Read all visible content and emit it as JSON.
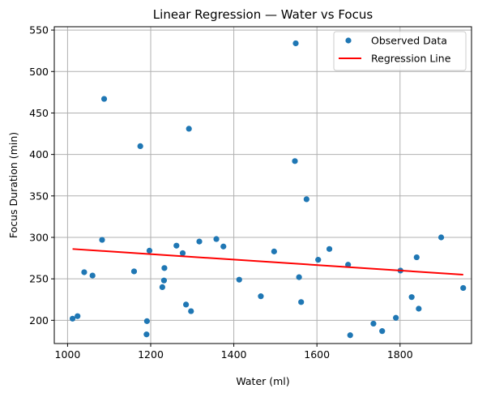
{
  "colors": {
    "points": "#1f77b4",
    "regression": "#ff0000",
    "grid": "#b0b0b0",
    "axes": "#000000",
    "background": "#ffffff"
  },
  "chart_data": {
    "type": "scatter",
    "title": "Linear Regression — Water vs Focus",
    "xlabel": "Water (ml)",
    "ylabel": "Focus Duration (min)",
    "xlim": [
      968,
      1972
    ],
    "ylim": [
      172,
      554
    ],
    "xticks": [
      1000,
      1200,
      1400,
      1600,
      1800
    ],
    "yticks": [
      200,
      250,
      300,
      350,
      400,
      450,
      500,
      550
    ],
    "grid": true,
    "legend_position": "top-right",
    "series": [
      {
        "name": "Observed Data",
        "kind": "scatter",
        "color": "#1f77b4",
        "points": [
          [
            1012,
            202
          ],
          [
            1024,
            205
          ],
          [
            1040,
            258
          ],
          [
            1060,
            254
          ],
          [
            1083,
            297
          ],
          [
            1088,
            467
          ],
          [
            1160,
            259
          ],
          [
            1175,
            410
          ],
          [
            1190,
            183
          ],
          [
            1191,
            199
          ],
          [
            1197,
            284
          ],
          [
            1228,
            240
          ],
          [
            1232,
            248
          ],
          [
            1233,
            263
          ],
          [
            1262,
            290
          ],
          [
            1277,
            281
          ],
          [
            1285,
            219
          ],
          [
            1292,
            431
          ],
          [
            1297,
            211
          ],
          [
            1317,
            295
          ],
          [
            1358,
            298
          ],
          [
            1375,
            289
          ],
          [
            1413,
            249
          ],
          [
            1465,
            229
          ],
          [
            1497,
            283
          ],
          [
            1547,
            392
          ],
          [
            1549,
            534
          ],
          [
            1557,
            252
          ],
          [
            1562,
            222
          ],
          [
            1575,
            346
          ],
          [
            1603,
            273
          ],
          [
            1630,
            286
          ],
          [
            1675,
            267
          ],
          [
            1680,
            182
          ],
          [
            1736,
            196
          ],
          [
            1757,
            187
          ],
          [
            1790,
            203
          ],
          [
            1801,
            260
          ],
          [
            1828,
            228
          ],
          [
            1840,
            276
          ],
          [
            1845,
            214
          ],
          [
            1899,
            300
          ],
          [
            1952,
            239
          ]
        ]
      },
      {
        "name": "Regression Line",
        "kind": "line",
        "color": "#ff0000",
        "points": [
          [
            1012,
            286
          ],
          [
            1952,
            255
          ]
        ]
      }
    ]
  }
}
